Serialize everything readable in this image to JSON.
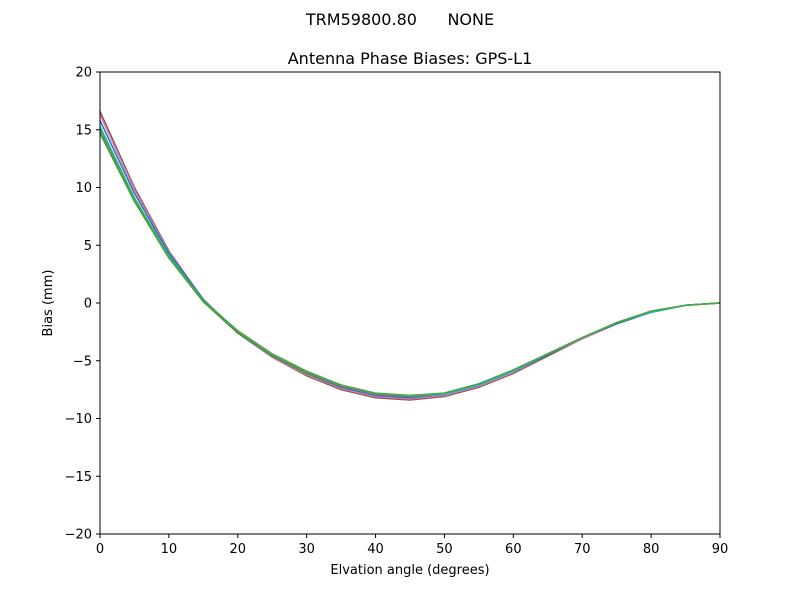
{
  "figure": {
    "suptitle_left": "TRM59800.80",
    "suptitle_right": "NONE"
  },
  "chart_data": {
    "type": "line",
    "title": "Antenna Phase Biases: GPS-L1",
    "xlabel": "Elvation angle (degrees)",
    "ylabel": "Bias (mm)",
    "xlim": [
      0,
      90
    ],
    "ylim": [
      -20,
      20
    ],
    "xticks": [
      0,
      10,
      20,
      30,
      40,
      50,
      60,
      70,
      80,
      90
    ],
    "yticks": [
      -20,
      -15,
      -10,
      -5,
      0,
      5,
      10,
      15,
      20
    ],
    "xtick_labels": [
      "0",
      "10",
      "20",
      "30",
      "40",
      "50",
      "60",
      "70",
      "80",
      "90"
    ],
    "ytick_labels": [
      "−20",
      "−15",
      "−10",
      "−5",
      "0",
      "5",
      "10",
      "15",
      "20"
    ],
    "grid": false,
    "x": [
      0,
      5,
      10,
      15,
      20,
      25,
      30,
      35,
      40,
      45,
      50,
      55,
      60,
      65,
      70,
      75,
      80,
      85,
      90
    ],
    "series": [
      {
        "color": "#8c564b",
        "values": [
          16.6,
          10.0,
          4.5,
          0.3,
          -2.6,
          -4.7,
          -6.3,
          -7.5,
          -8.2,
          -8.4,
          -8.1,
          -7.3,
          -6.1,
          -4.6,
          -3.1,
          -1.8,
          -0.8,
          -0.2,
          0.0
        ]
      },
      {
        "color": "#e377c2",
        "values": [
          16.3,
          9.8,
          4.4,
          0.3,
          -2.6,
          -4.7,
          -6.2,
          -7.4,
          -8.1,
          -8.3,
          -8.0,
          -7.2,
          -6.0,
          -4.5,
          -3.1,
          -1.8,
          -0.8,
          -0.2,
          0.0
        ]
      },
      {
        "color": "#1f77b4",
        "values": [
          15.8,
          9.5,
          4.3,
          0.3,
          -2.5,
          -4.6,
          -6.1,
          -7.3,
          -8.0,
          -8.2,
          -7.9,
          -7.1,
          -5.9,
          -4.5,
          -3.0,
          -1.8,
          -0.8,
          -0.2,
          0.0
        ]
      },
      {
        "color": "#17becf",
        "values": [
          15.3,
          9.1,
          4.1,
          0.2,
          -2.5,
          -4.5,
          -6.1,
          -7.2,
          -7.9,
          -8.1,
          -7.9,
          -7.1,
          -5.9,
          -4.4,
          -3.0,
          -1.7,
          -0.8,
          -0.2,
          0.0
        ]
      },
      {
        "color": "#2ca02c",
        "values": [
          14.7,
          8.8,
          3.9,
          0.1,
          -2.6,
          -4.6,
          -6.1,
          -7.2,
          -7.9,
          -8.1,
          -7.8,
          -7.0,
          -5.8,
          -4.4,
          -3.0,
          -1.7,
          -0.7,
          -0.2,
          0.0
        ]
      },
      {
        "color": "#7f7f7f",
        "values": [
          14.9,
          9.0,
          4.0,
          0.2,
          -2.5,
          -4.5,
          -6.0,
          -7.2,
          -7.9,
          -8.1,
          -7.8,
          -7.0,
          -5.8,
          -4.4,
          -3.0,
          -1.7,
          -0.7,
          -0.2,
          0.0
        ]
      },
      {
        "color": "#4aa843",
        "values": [
          15.1,
          9.0,
          4.0,
          0.2,
          -2.4,
          -4.4,
          -5.9,
          -7.1,
          -7.8,
          -8.0,
          -7.8,
          -7.0,
          -5.8,
          -4.4,
          -3.0,
          -1.7,
          -0.7,
          -0.2,
          0.0
        ]
      }
    ]
  }
}
